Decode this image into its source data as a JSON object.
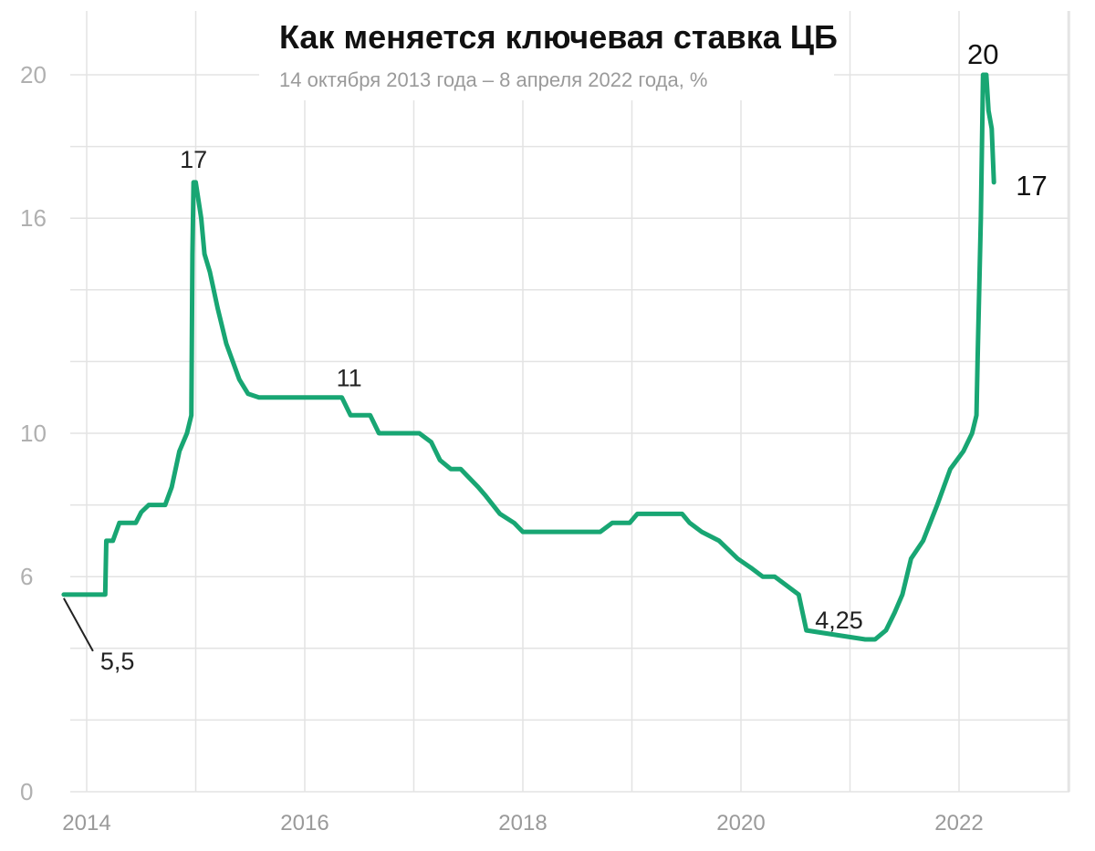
{
  "chart_data": {
    "type": "line",
    "title": "Как меняется ключевая ставка ЦБ",
    "subtitle": "14 октября 2013 года – 8 апреля 2022 года, %",
    "xlabel": "",
    "ylabel": "",
    "xlim": [
      2013.79,
      2023.1
    ],
    "ylim": [
      0,
      20
    ],
    "y_ticks": [
      "0",
      "6",
      "10",
      "16",
      "20"
    ],
    "x_ticks": [
      "2014",
      "2016",
      "2018",
      "2020",
      "2022"
    ],
    "grid": true,
    "colors": {
      "series": "#18a673",
      "grid": "#e3e3e3"
    },
    "series": [
      {
        "x": [
          2013.79,
          2014.17,
          2014.18,
          2014.24,
          2014.3,
          2014.45,
          2014.5,
          2014.57,
          2014.72,
          2014.78,
          2014.85,
          2014.92,
          2014.96,
          2014.97,
          2014.98,
          2015.0,
          2015.05,
          2015.08,
          2015.13,
          2015.2,
          2015.28,
          2015.4,
          2015.48,
          2015.58,
          2016.34,
          2016.42,
          2016.6,
          2016.68,
          2017.05,
          2017.16,
          2017.24,
          2017.34,
          2017.43,
          2017.59,
          2017.66,
          2017.79,
          2017.92,
          2018.0,
          2018.19,
          2018.24,
          2018.5,
          2018.71,
          2018.82,
          2018.98,
          2019.05,
          2019.46,
          2019.53,
          2019.64,
          2019.8,
          2019.97,
          2020.09,
          2020.2,
          2020.31,
          2020.53,
          2020.6,
          2021.14,
          2021.23,
          2021.33,
          2021.41,
          2021.48,
          2021.56,
          2021.67,
          2021.8,
          2021.92,
          2022.04,
          2022.12,
          2022.16,
          2022.17,
          2022.2,
          2022.22,
          2022.23,
          2022.24,
          2022.25,
          2022.27,
          2022.3,
          2022.32
        ],
        "y": [
          5.5,
          5.5,
          7,
          7,
          7.5,
          7.5,
          7.8,
          8,
          8,
          8.5,
          9.5,
          10,
          10.5,
          15,
          17,
          17,
          16,
          15,
          14.5,
          13.5,
          12.5,
          11.5,
          11.1,
          11,
          11,
          10.5,
          10.5,
          10,
          10,
          9.75,
          9.25,
          9,
          9,
          8.5,
          8.25,
          7.75,
          7.5,
          7.25,
          7.25,
          7.25,
          7.25,
          7.25,
          7.5,
          7.5,
          7.75,
          7.75,
          7.5,
          7.25,
          7,
          6.5,
          6.25,
          6,
          6,
          5.5,
          4.5,
          4.25,
          4.25,
          4.5,
          5,
          5.5,
          6.5,
          7,
          8,
          9,
          9.5,
          10,
          10.5,
          12,
          16,
          20,
          20,
          20,
          20,
          19,
          18.5,
          17
        ]
      }
    ],
    "annotations": [
      {
        "text": "5,5",
        "x": 2013.79,
        "y": 5.5
      },
      {
        "text": "17",
        "x": 2014.98,
        "y": 17
      },
      {
        "text": "11",
        "x": 2016.34,
        "y": 11
      },
      {
        "text": "4,25",
        "x": 2020.9,
        "y": 4.25
      },
      {
        "text": "20",
        "x": 2022.22,
        "y": 20
      },
      {
        "text": "17",
        "x": 2022.32,
        "y": 17
      }
    ]
  }
}
